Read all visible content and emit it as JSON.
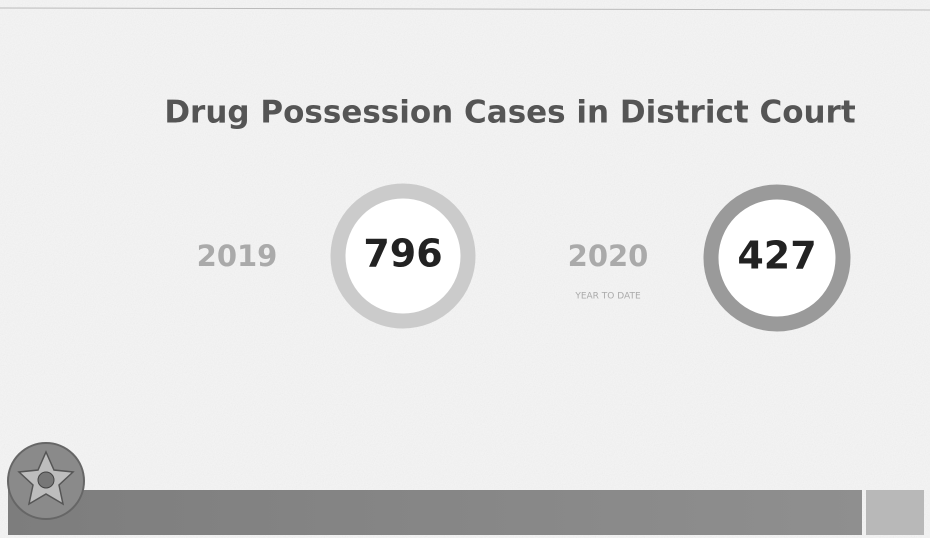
{
  "header": {
    "title": "Drug Possession Cases in District Court"
  },
  "stats": [
    {
      "year": "2019",
      "count": 796
    },
    {
      "year": "2020",
      "note": "YEAR TO DATE",
      "count": 427
    }
  ]
}
